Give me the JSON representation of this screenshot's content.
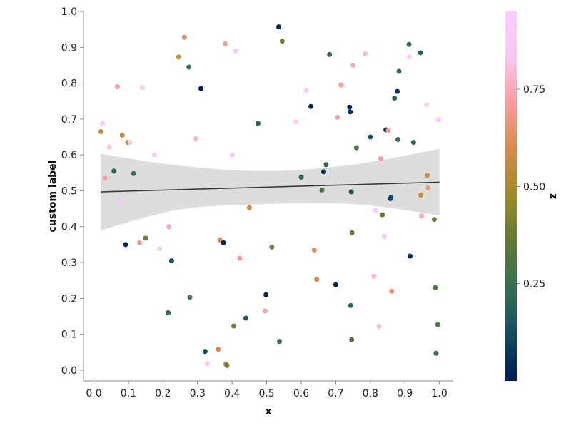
{
  "chart_data": {
    "type": "scatter",
    "title": "",
    "xlabel": "x",
    "ylabel": "custom label",
    "xlim": [
      -0.03,
      1.04
    ],
    "ylim": [
      -0.03,
      1.0
    ],
    "x_ticks": [
      "0.0",
      "0.1",
      "0.2",
      "0.3",
      "0.4",
      "0.5",
      "0.6",
      "0.7",
      "0.8",
      "0.9",
      "1.0"
    ],
    "y_ticks": [
      "0.0",
      "0.1",
      "0.2",
      "0.3",
      "0.4",
      "0.5",
      "0.6",
      "0.7",
      "0.8",
      "0.9",
      "1.0"
    ],
    "grid": false,
    "legend": "none",
    "colorbar": {
      "label": "z",
      "range": [
        0.0,
        0.95
      ],
      "ticks": [
        "0.25",
        "0.50",
        "0.75"
      ],
      "tick_values": [
        0.25,
        0.5,
        0.75
      ],
      "colormap": "batlow",
      "stops": [
        "#011959",
        "#114d5e",
        "#346d53",
        "#617a38",
        "#9b8a2b",
        "#d48b4a",
        "#f9999b",
        "#f9c8f0",
        "#facdfc"
      ]
    },
    "regression": {
      "line": [
        [
          0.02,
          0.497
        ],
        [
          1.0,
          0.524
        ]
      ],
      "ci_upper": [
        [
          0.02,
          0.603
        ],
        [
          0.25,
          0.57
        ],
        [
          0.5,
          0.555
        ],
        [
          0.75,
          0.573
        ],
        [
          1.0,
          0.617
        ]
      ],
      "ci_lower": [
        [
          0.02,
          0.39
        ],
        [
          0.25,
          0.448
        ],
        [
          0.5,
          0.463
        ],
        [
          0.75,
          0.463
        ],
        [
          1.0,
          0.432
        ]
      ],
      "line_color": "#333333",
      "band_color": "#dddddd"
    },
    "points": [
      {
        "x": 0.02,
        "y": 0.665,
        "z": 0.55
      },
      {
        "x": 0.025,
        "y": 0.688,
        "z": 0.88
      },
      {
        "x": 0.032,
        "y": 0.535,
        "z": 0.72
      },
      {
        "x": 0.045,
        "y": 0.622,
        "z": 0.82
      },
      {
        "x": 0.058,
        "y": 0.555,
        "z": 0.2
      },
      {
        "x": 0.068,
        "y": 0.79,
        "z": 0.72
      },
      {
        "x": 0.075,
        "y": 0.47,
        "z": 0.87
      },
      {
        "x": 0.082,
        "y": 0.655,
        "z": 0.55
      },
      {
        "x": 0.092,
        "y": 0.35,
        "z": 0.02
      },
      {
        "x": 0.098,
        "y": 0.635,
        "z": 0.55
      },
      {
        "x": 0.105,
        "y": 0.635,
        "z": 0.88
      },
      {
        "x": 0.115,
        "y": 0.548,
        "z": 0.25
      },
      {
        "x": 0.132,
        "y": 0.355,
        "z": 0.7
      },
      {
        "x": 0.14,
        "y": 0.788,
        "z": 0.87
      },
      {
        "x": 0.15,
        "y": 0.368,
        "z": 0.38
      },
      {
        "x": 0.175,
        "y": 0.6,
        "z": 0.9
      },
      {
        "x": 0.19,
        "y": 0.338,
        "z": 0.88
      },
      {
        "x": 0.215,
        "y": 0.16,
        "z": 0.2
      },
      {
        "x": 0.217,
        "y": 0.4,
        "z": 0.75
      },
      {
        "x": 0.225,
        "y": 0.305,
        "z": 0.15
      },
      {
        "x": 0.245,
        "y": 0.873,
        "z": 0.55
      },
      {
        "x": 0.262,
        "y": 0.928,
        "z": 0.62
      },
      {
        "x": 0.275,
        "y": 0.845,
        "z": 0.25
      },
      {
        "x": 0.278,
        "y": 0.203,
        "z": 0.3
      },
      {
        "x": 0.295,
        "y": 0.645,
        "z": 0.78
      },
      {
        "x": 0.31,
        "y": 0.785,
        "z": 0.02
      },
      {
        "x": 0.322,
        "y": 0.052,
        "z": 0.12
      },
      {
        "x": 0.328,
        "y": 0.018,
        "z": 0.85
      },
      {
        "x": 0.36,
        "y": 0.058,
        "z": 0.6
      },
      {
        "x": 0.365,
        "y": 0.363,
        "z": 0.62
      },
      {
        "x": 0.375,
        "y": 0.355,
        "z": 0.02
      },
      {
        "x": 0.38,
        "y": 0.91,
        "z": 0.72
      },
      {
        "x": 0.382,
        "y": 0.017,
        "z": 0.55
      },
      {
        "x": 0.385,
        "y": 0.013,
        "z": 0.38
      },
      {
        "x": 0.4,
        "y": 0.6,
        "z": 0.9
      },
      {
        "x": 0.405,
        "y": 0.123,
        "z": 0.38
      },
      {
        "x": 0.41,
        "y": 0.89,
        "z": 0.85
      },
      {
        "x": 0.422,
        "y": 0.312,
        "z": 0.72
      },
      {
        "x": 0.44,
        "y": 0.145,
        "z": 0.15
      },
      {
        "x": 0.45,
        "y": 0.453,
        "z": 0.58
      },
      {
        "x": 0.475,
        "y": 0.688,
        "z": 0.2
      },
      {
        "x": 0.495,
        "y": 0.165,
        "z": 0.72
      },
      {
        "x": 0.498,
        "y": 0.21,
        "z": 0.02
      },
      {
        "x": 0.515,
        "y": 0.343,
        "z": 0.38
      },
      {
        "x": 0.535,
        "y": 0.957,
        "z": 0.05
      },
      {
        "x": 0.537,
        "y": 0.08,
        "z": 0.25
      },
      {
        "x": 0.545,
        "y": 0.917,
        "z": 0.38
      },
      {
        "x": 0.585,
        "y": 0.692,
        "z": 0.9
      },
      {
        "x": 0.6,
        "y": 0.538,
        "z": 0.2
      },
      {
        "x": 0.615,
        "y": 0.78,
        "z": 0.88
      },
      {
        "x": 0.628,
        "y": 0.735,
        "z": 0.05
      },
      {
        "x": 0.638,
        "y": 0.335,
        "z": 0.62
      },
      {
        "x": 0.645,
        "y": 0.253,
        "z": 0.6
      },
      {
        "x": 0.66,
        "y": 0.502,
        "z": 0.3
      },
      {
        "x": 0.665,
        "y": 0.553,
        "z": 0.05
      },
      {
        "x": 0.672,
        "y": 0.573,
        "z": 0.2
      },
      {
        "x": 0.682,
        "y": 0.88,
        "z": 0.2
      },
      {
        "x": 0.7,
        "y": 0.238,
        "z": 0.02
      },
      {
        "x": 0.705,
        "y": 0.705,
        "z": 0.72
      },
      {
        "x": 0.715,
        "y": 0.795,
        "z": 0.72
      },
      {
        "x": 0.74,
        "y": 0.733,
        "z": 0.02
      },
      {
        "x": 0.742,
        "y": 0.72,
        "z": 0.02
      },
      {
        "x": 0.743,
        "y": 0.18,
        "z": 0.2
      },
      {
        "x": 0.745,
        "y": 0.497,
        "z": 0.15
      },
      {
        "x": 0.746,
        "y": 0.085,
        "z": 0.3
      },
      {
        "x": 0.747,
        "y": 0.383,
        "z": 0.38
      },
      {
        "x": 0.75,
        "y": 0.85,
        "z": 0.75
      },
      {
        "x": 0.76,
        "y": 0.62,
        "z": 0.3
      },
      {
        "x": 0.785,
        "y": 0.882,
        "z": 0.8
      },
      {
        "x": 0.8,
        "y": 0.65,
        "z": 0.12
      },
      {
        "x": 0.81,
        "y": 0.262,
        "z": 0.78
      },
      {
        "x": 0.815,
        "y": 0.445,
        "z": 0.93
      },
      {
        "x": 0.825,
        "y": 0.122,
        "z": 0.8
      },
      {
        "x": 0.83,
        "y": 0.59,
        "z": 0.72
      },
      {
        "x": 0.835,
        "y": 0.433,
        "z": 0.38
      },
      {
        "x": 0.84,
        "y": 0.373,
        "z": 0.88
      },
      {
        "x": 0.845,
        "y": 0.67,
        "z": 0.02
      },
      {
        "x": 0.852,
        "y": 0.668,
        "z": 0.72
      },
      {
        "x": 0.858,
        "y": 0.478,
        "z": 0.05
      },
      {
        "x": 0.86,
        "y": 0.482,
        "z": 0.12
      },
      {
        "x": 0.862,
        "y": 0.22,
        "z": 0.65
      },
      {
        "x": 0.87,
        "y": 0.758,
        "z": 0.2
      },
      {
        "x": 0.878,
        "y": 0.777,
        "z": 0.05
      },
      {
        "x": 0.88,
        "y": 0.643,
        "z": 0.25
      },
      {
        "x": 0.883,
        "y": 0.833,
        "z": 0.2
      },
      {
        "x": 0.912,
        "y": 0.908,
        "z": 0.25
      },
      {
        "x": 0.913,
        "y": 0.873,
        "z": 0.9
      },
      {
        "x": 0.915,
        "y": 0.318,
        "z": 0.05
      },
      {
        "x": 0.925,
        "y": 0.635,
        "z": 0.2
      },
      {
        "x": 0.945,
        "y": 0.885,
        "z": 0.2
      },
      {
        "x": 0.946,
        "y": 0.488,
        "z": 0.55
      },
      {
        "x": 0.948,
        "y": 0.43,
        "z": 0.75
      },
      {
        "x": 0.963,
        "y": 0.74,
        "z": 0.9
      },
      {
        "x": 0.965,
        "y": 0.543,
        "z": 0.58
      },
      {
        "x": 0.967,
        "y": 0.508,
        "z": 0.68
      },
      {
        "x": 0.985,
        "y": 0.42,
        "z": 0.38
      },
      {
        "x": 0.988,
        "y": 0.23,
        "z": 0.3
      },
      {
        "x": 0.99,
        "y": 0.047,
        "z": 0.25
      },
      {
        "x": 0.995,
        "y": 0.127,
        "z": 0.3
      },
      {
        "x": 0.997,
        "y": 0.698,
        "z": 0.9
      }
    ]
  }
}
